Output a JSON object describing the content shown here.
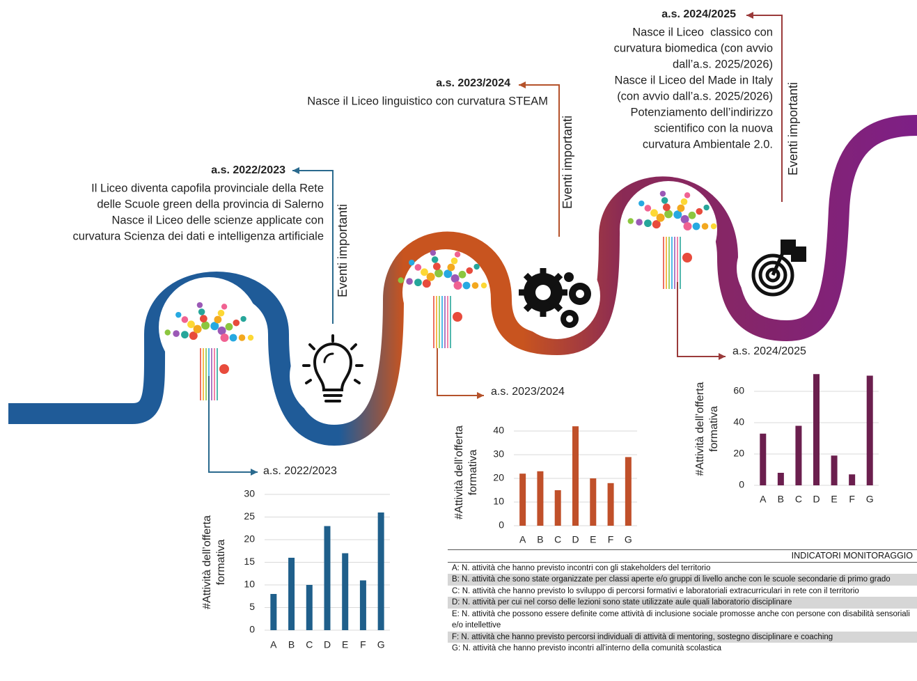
{
  "events": [
    {
      "title": "a.s. 2022/2023",
      "tag": "Eventi importanti",
      "lines": [
        "Il Liceo diventa capofila provinciale della Rete",
        "delle Scuole green della provincia di Salerno",
        "Nasce il Liceo delle scienze applicate con",
        "curvatura Scienza dei dati e intelligenza artificiale"
      ]
    },
    {
      "title": "a.s. 2023/2024",
      "tag": "Eventi importanti",
      "lines": [
        "Nasce il Liceo linguistico con curvatura STEAM"
      ]
    },
    {
      "title": "a.s. 2024/2025",
      "tag": "Eventi importanti",
      "lines": [
        "Nasce il Liceo  classico con",
        "curvatura biomedica (con avvio",
        "dall’a.s. 2025/2026)",
        "Nasce il Liceo del Made in Italy",
        "(con avvio dall’a.s. 2025/2026)",
        "Potenziamento dell’indirizzo",
        "scientifico con la nuova",
        "curvatura Ambientale 2.0."
      ]
    }
  ],
  "chart_data": [
    {
      "type": "bar",
      "title": "a.s. 2022/2023",
      "ylabel": [
        "#Attività dell’offerta",
        "formativa"
      ],
      "categories": [
        "A",
        "B",
        "C",
        "D",
        "E",
        "F",
        "G"
      ],
      "values": [
        8,
        16,
        10,
        23,
        17,
        11,
        26
      ],
      "color": "#1f5f8b",
      "ylim": [
        0,
        30
      ],
      "yticks": [
        0,
        5,
        10,
        15,
        20,
        25,
        30
      ],
      "grid": true
    },
    {
      "type": "bar",
      "title": "a.s. 2023/2024",
      "ylabel": [
        "#Attività dell’offerta",
        "formativa"
      ],
      "categories": [
        "A",
        "B",
        "C",
        "D",
        "E",
        "F",
        "G"
      ],
      "values": [
        22,
        23,
        15,
        42,
        20,
        18,
        29
      ],
      "color": "#c0502a",
      "ylim": [
        0,
        45
      ],
      "yticks": [
        0,
        10,
        20,
        30,
        40
      ],
      "grid": true
    },
    {
      "type": "bar",
      "title": "a.s. 2024/2025",
      "ylabel": [
        "#Attività dell’offerta",
        "formativa"
      ],
      "categories": [
        "A",
        "B",
        "C",
        "D",
        "E",
        "F",
        "G"
      ],
      "values": [
        33,
        8,
        38,
        71,
        19,
        7,
        70
      ],
      "color": "#6b1f4e",
      "ylim": [
        0,
        72
      ],
      "yticks": [
        0,
        20,
        40,
        60
      ],
      "grid": true
    }
  ],
  "legend": {
    "title": "INDICATORI MONITORAGGIO",
    "items": [
      "A: N. attività che hanno previsto incontri con gli stakeholders del territorio",
      "B: N. attività che sono state organizzate per classi aperte e/o gruppi di livello anche con le scuole secondarie di primo grado",
      "C: N. attività che hanno previsto lo sviluppo di percorsi formativi e laboratoriali extracurriculari in rete con il territorio",
      "D: N. attività per cui nel corso delle lezioni sono state utilizzate aule quali laboratorio disciplinare",
      "E: N. attività che possono essere definite come attività di inclusione sociale promosse anche con persone con disabilità sensoriali e/o intellettive",
      "F: N. attività che hanno previsto percorsi individuali di attività di mentoring, sostegno disciplinare e coaching",
      "G: N. attività che hanno previsto incontri all'interno della comunità scolastica"
    ]
  }
}
